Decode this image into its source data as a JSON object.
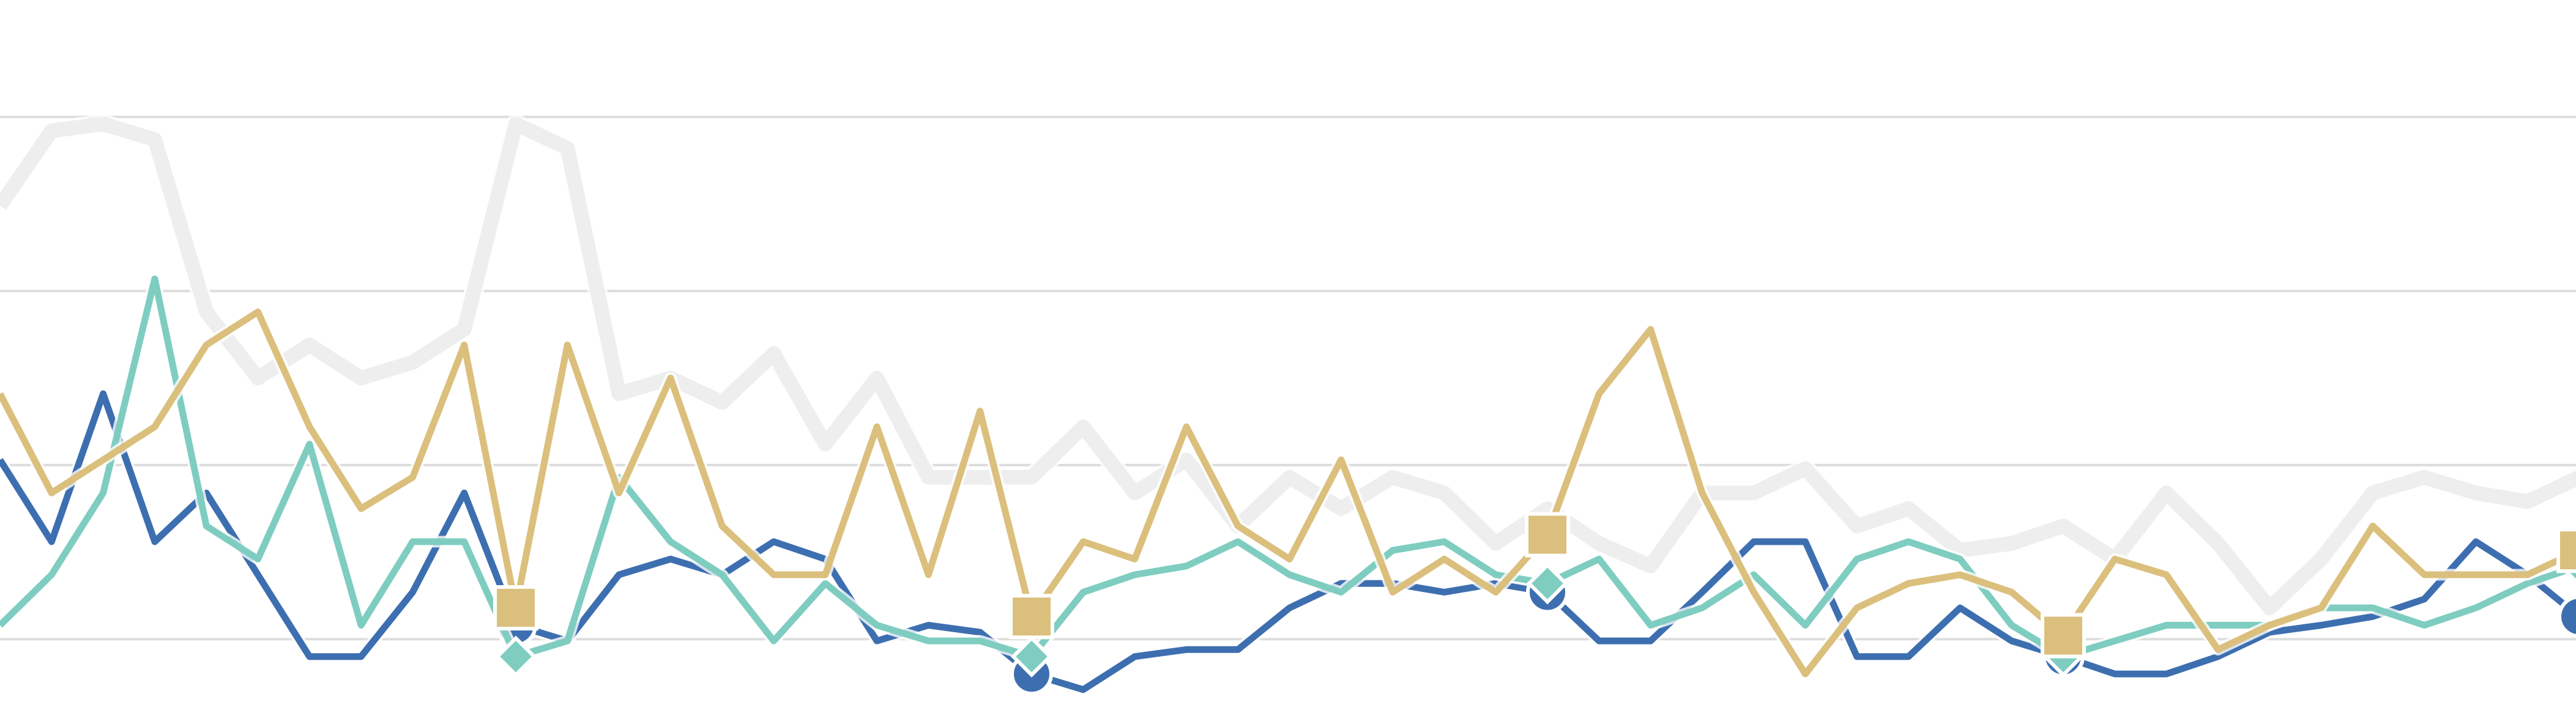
{
  "chart_data": {
    "type": "line",
    "x": [
      0,
      1,
      2,
      3,
      4,
      5,
      6,
      7,
      8,
      9,
      10,
      11,
      12,
      13,
      14,
      15,
      16,
      17,
      18,
      19,
      20,
      21,
      22,
      23,
      24,
      25,
      26,
      27,
      28,
      29,
      30,
      31,
      32,
      33,
      34,
      35,
      36,
      37,
      38,
      39,
      40,
      41,
      42,
      43,
      44,
      45,
      46,
      47,
      48,
      49,
      50
    ],
    "xlim": [
      0,
      50
    ],
    "ylim": [
      -0.4,
      3.7
    ],
    "yticks": [
      0,
      1,
      2,
      3
    ],
    "grid": true,
    "marker_every": 10,
    "series": [
      {
        "color": "#eeeeee",
        "width": 24,
        "marker": null,
        "values": [
          2.49,
          2.92,
          2.96,
          2.87,
          1.88,
          1.5,
          1.69,
          1.5,
          1.59,
          1.78,
          2.96,
          2.82,
          1.41,
          1.5,
          1.36,
          1.64,
          1.12,
          1.5,
          0.93,
          0.93,
          0.93,
          1.22,
          0.84,
          1.03,
          0.65,
          0.93,
          0.75,
          0.93,
          0.84,
          0.55,
          0.75,
          0.55,
          0.42,
          0.84,
          0.84,
          0.98,
          0.65,
          0.75,
          0.51,
          0.55,
          0.65,
          0.46,
          0.84,
          0.55,
          0.18,
          0.46,
          0.84,
          0.93,
          0.84,
          0.79,
          0.93
        ]
      },
      {
        "color": "#3d6fb0",
        "width": 11,
        "marker": "circle",
        "values": [
          1.03,
          0.56,
          1.41,
          0.56,
          0.84,
          0.37,
          -0.1,
          -0.1,
          0.27,
          0.84,
          0.08,
          -0.01,
          0.37,
          0.46,
          0.37,
          0.56,
          0.46,
          -0.01,
          0.08,
          0.04,
          -0.2,
          -0.29,
          -0.1,
          -0.06,
          -0.06,
          0.18,
          0.32,
          0.32,
          0.27,
          0.32,
          0.27,
          -0.01,
          -0.01,
          0.27,
          0.56,
          0.56,
          -0.1,
          -0.1,
          0.18,
          -0.01,
          -0.1,
          -0.2,
          -0.2,
          -0.1,
          0.04,
          0.08,
          0.13,
          0.23,
          0.56,
          0.37,
          0.13
        ]
      },
      {
        "color": "#7ecdc0",
        "width": 11,
        "marker": "diamond",
        "values": [
          0.08,
          0.37,
          0.84,
          2.07,
          0.65,
          0.46,
          1.12,
          0.08,
          0.56,
          0.56,
          -0.1,
          -0.01,
          0.93,
          0.56,
          0.37,
          -0.01,
          0.32,
          0.08,
          -0.01,
          -0.01,
          -0.1,
          0.27,
          0.37,
          0.42,
          0.56,
          0.37,
          0.27,
          0.51,
          0.56,
          0.37,
          0.32,
          0.46,
          0.08,
          0.18,
          0.37,
          0.08,
          0.46,
          0.56,
          0.46,
          0.08,
          -0.1,
          -0.01,
          0.08,
          0.08,
          0.08,
          0.18,
          0.18,
          0.08,
          0.18,
          0.32,
          0.42
        ]
      },
      {
        "color": "#dbbf7c",
        "width": 11,
        "marker": "square",
        "values": [
          1.41,
          0.84,
          1.03,
          1.22,
          1.69,
          1.88,
          1.22,
          0.75,
          0.93,
          1.69,
          0.18,
          1.69,
          0.84,
          1.5,
          0.65,
          0.37,
          0.37,
          1.22,
          0.37,
          1.31,
          0.13,
          0.56,
          0.46,
          1.22,
          0.65,
          0.46,
          1.03,
          0.27,
          0.46,
          0.27,
          0.6,
          1.41,
          1.78,
          0.84,
          0.27,
          -0.2,
          0.18,
          0.32,
          0.37,
          0.27,
          0.02,
          0.46,
          0.37,
          -0.06,
          0.08,
          0.18,
          0.65,
          0.37,
          0.37,
          0.37,
          0.51
        ]
      }
    ]
  }
}
